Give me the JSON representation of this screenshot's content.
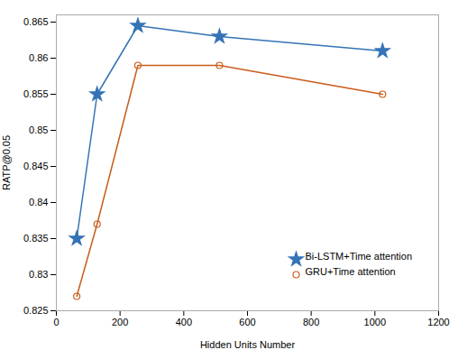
{
  "chart_data": {
    "type": "line",
    "xlabel": "Hidden Units Number",
    "ylabel": "RATP@0.05",
    "x": [
      64,
      128,
      256,
      512,
      1024
    ],
    "series": [
      {
        "name": "Bi-LSTM+Time attention",
        "color": "#3473b5",
        "marker": "star",
        "values": [
          0.835,
          0.855,
          0.8645,
          0.863,
          0.861
        ]
      },
      {
        "name": "GRU+Time attention",
        "color": "#c95c1a",
        "marker": "circle",
        "values": [
          0.827,
          0.837,
          0.859,
          0.859,
          0.855
        ]
      }
    ],
    "xlim": [
      0,
      1200
    ],
    "xticks": [
      0,
      200,
      400,
      600,
      800,
      1000,
      1200
    ],
    "ylim": [
      0.825,
      0.866
    ],
    "yticks": [
      0.825,
      0.83,
      0.835,
      0.84,
      0.845,
      0.85,
      0.855,
      0.86,
      0.865
    ],
    "grid": false,
    "legend": "lower right"
  }
}
